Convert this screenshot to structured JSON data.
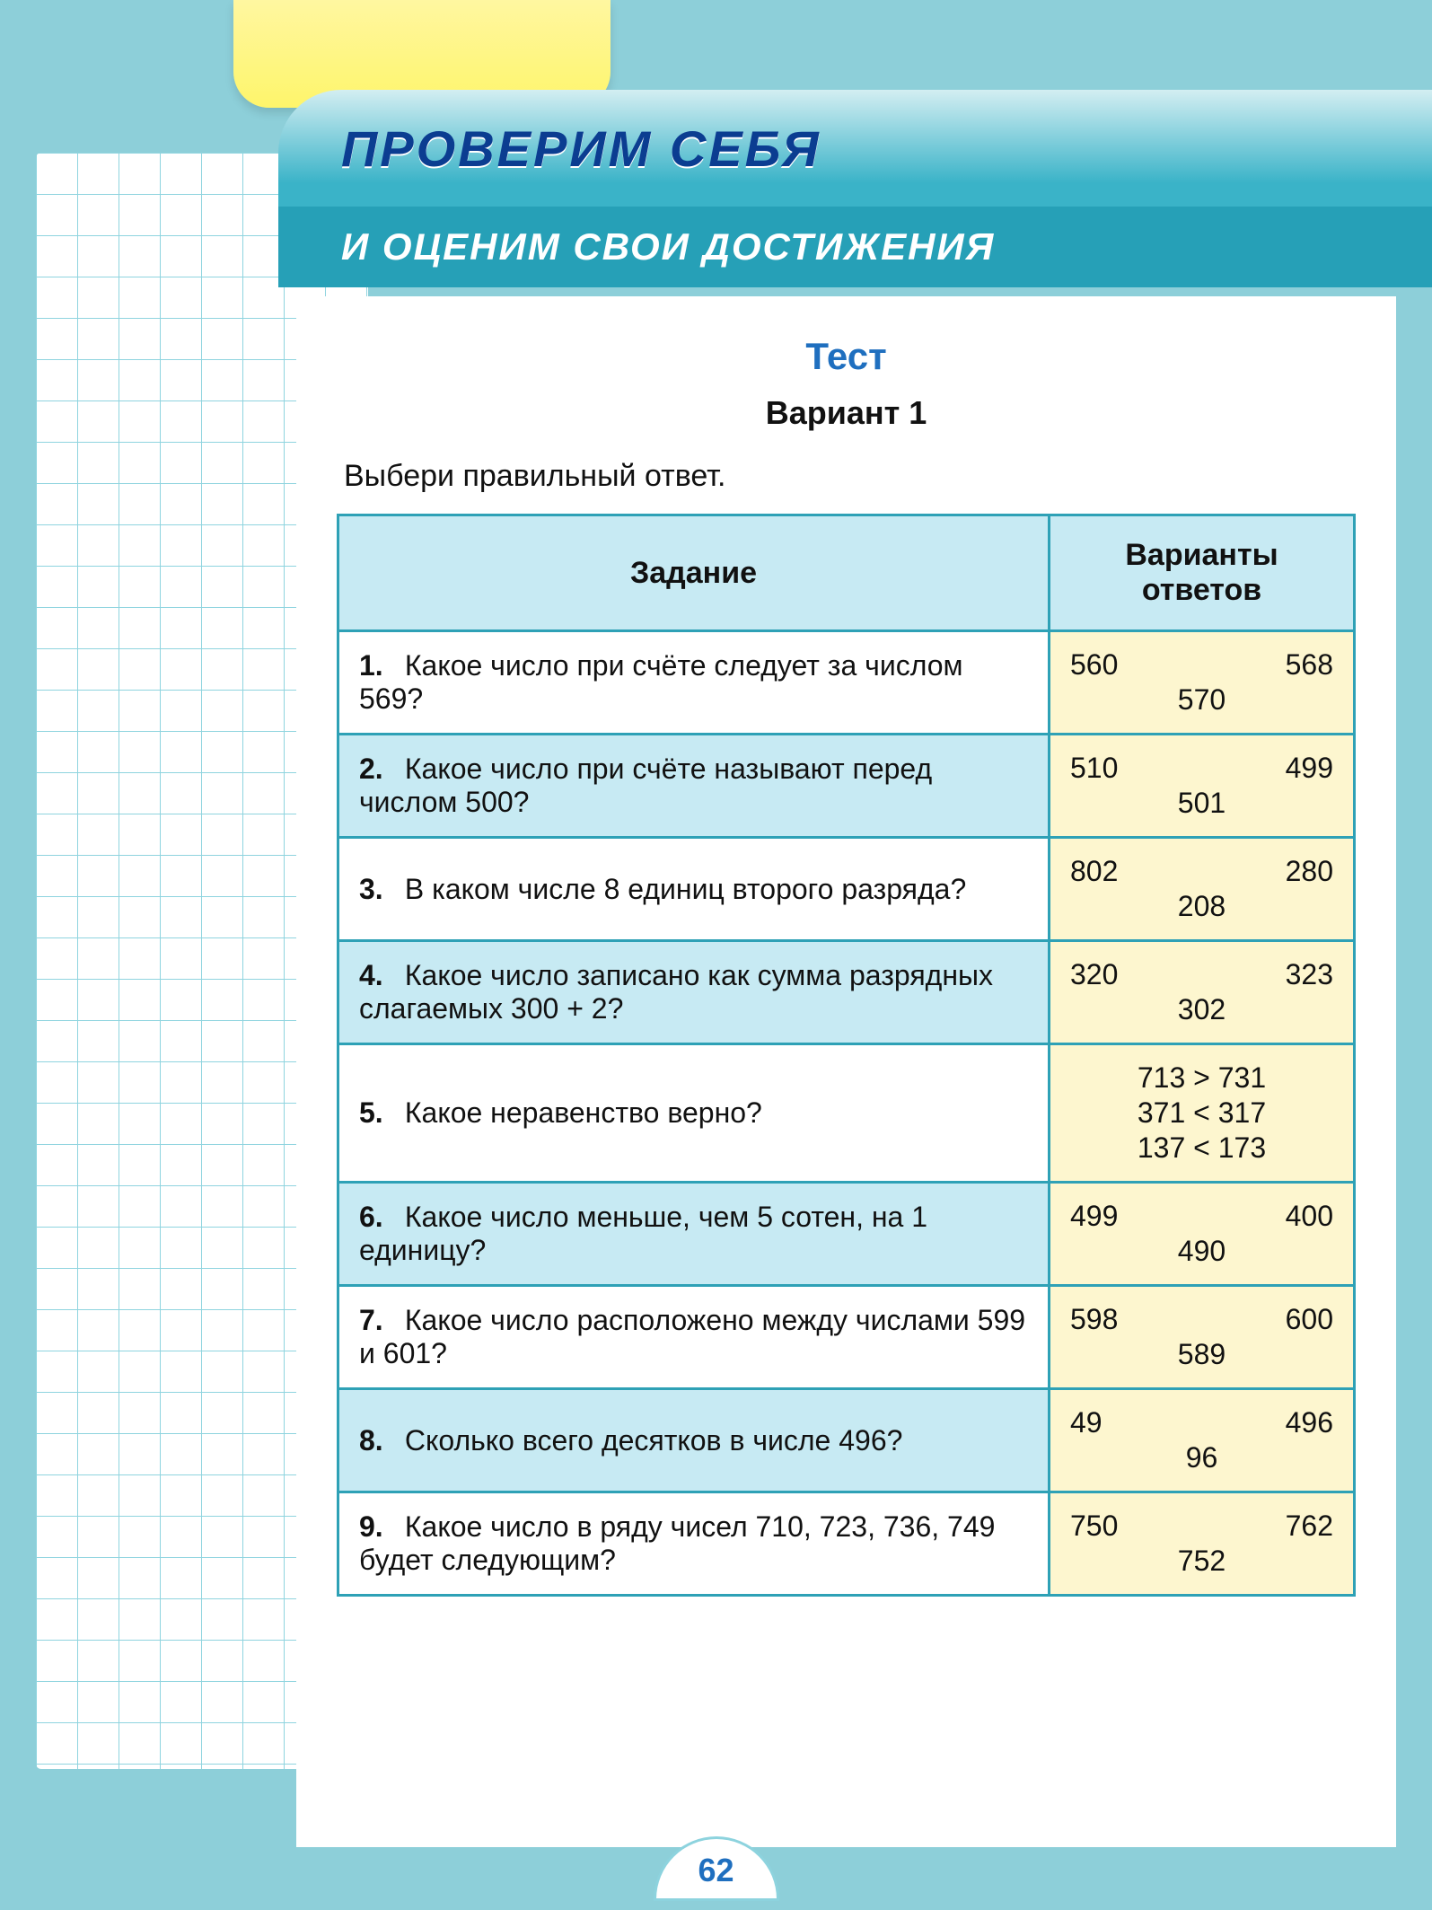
{
  "header": {
    "title_main": "ПРОВЕРИМ СЕБЯ",
    "title_sub": "И ОЦЕНИМ СВОИ ДОСТИЖЕНИЯ"
  },
  "test": {
    "label": "Тест",
    "variant": "Вариант  1",
    "instruction": "Выбери  правильный  ответ."
  },
  "table": {
    "columns": {
      "task": "Задание",
      "answers": "Варианты ответов"
    },
    "rows": [
      {
        "n": "1.",
        "q": "Какое число при счёте следует за числом 569?",
        "answer_layout": "triple",
        "a": [
          "560",
          "568",
          "570"
        ]
      },
      {
        "n": "2.",
        "q": "Какое число при счёте называют перед числом 500?",
        "answer_layout": "triple",
        "a": [
          "510",
          "499",
          "501"
        ]
      },
      {
        "n": "3.",
        "q": "В каком числе 8 единиц второго разряда?",
        "answer_layout": "triple",
        "a": [
          "802",
          "280",
          "208"
        ]
      },
      {
        "n": "4.",
        "q": "Какое число записано как сумма разрядных слагаемых 300 + 2?",
        "answer_layout": "triple",
        "a": [
          "320",
          "323",
          "302"
        ]
      },
      {
        "n": "5.",
        "q": "Какое неравенство верно?",
        "answer_layout": "stack",
        "a": [
          "713  >  731",
          "371  <  317",
          "137  <  173"
        ]
      },
      {
        "n": "6.",
        "q": "Какое число меньше, чем 5 сотен, на 1 единицу?",
        "answer_layout": "triple",
        "a": [
          "499",
          "400",
          "490"
        ]
      },
      {
        "n": "7.",
        "q": "Какое число расположено между числами 599 и 601?",
        "answer_layout": "triple",
        "a": [
          "598",
          "600",
          "589"
        ]
      },
      {
        "n": "8.",
        "q": "Сколько всего десятков в числе 496?",
        "answer_layout": "triple",
        "a": [
          "49",
          "496",
          "96"
        ]
      },
      {
        "n": "9.",
        "q": "Какое число в ряду чисел 710, 723, 736, 749 будет следующим?",
        "answer_layout": "triple",
        "a": [
          "750",
          "762",
          "752"
        ]
      }
    ]
  },
  "page_number": "62",
  "colors": {
    "frame": "#8dcfd9",
    "header_gradient_top": "#d3eef2",
    "header_gradient_bottom": "#3ab3c8",
    "header_sub_bg": "#26a0b7",
    "title_text": "#0b3d91",
    "table_border": "#2ea1b6",
    "row_blue": "#c7eaf3",
    "answer_bg": "#fdf6cf",
    "test_label": "#1f6fbf",
    "yellow_tab_top": "#fff7a0",
    "yellow_tab_bottom": "#fef56b",
    "grid_line": "#8fd4df"
  }
}
